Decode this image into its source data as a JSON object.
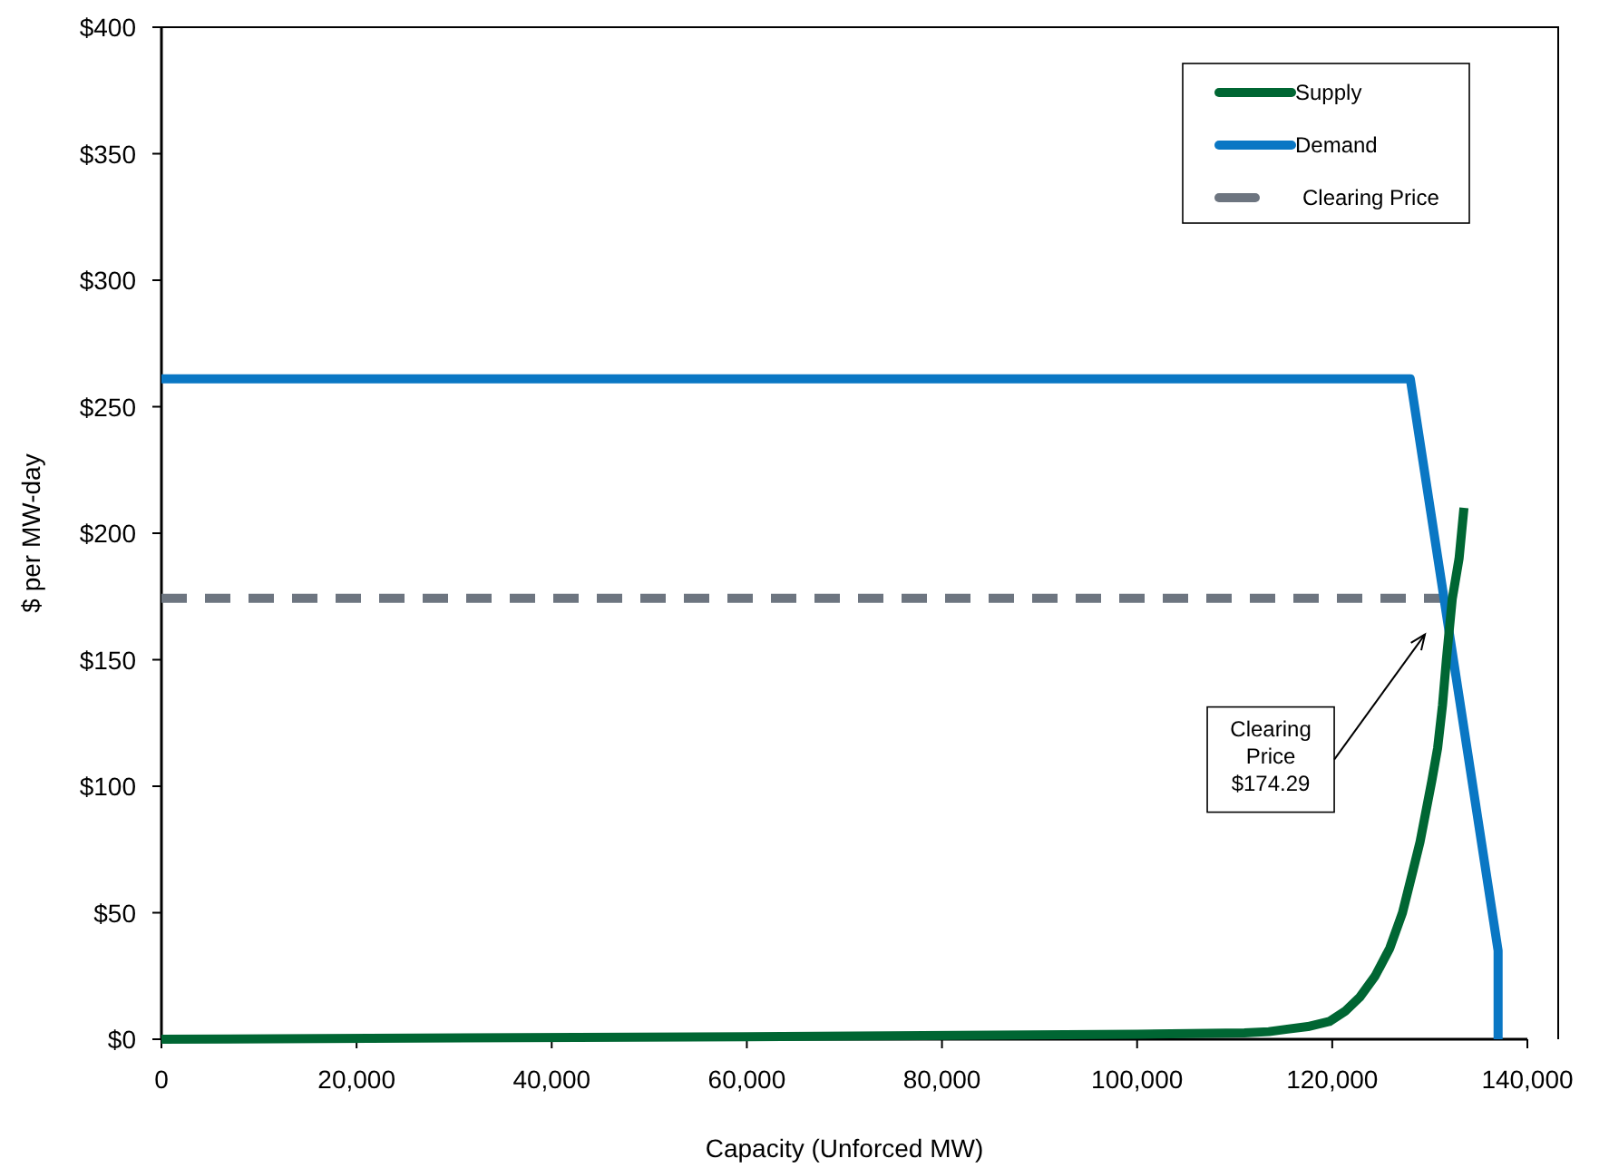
{
  "chart_data": {
    "type": "line",
    "xlabel": "Capacity (Unforced MW)",
    "ylabel": "$ per MW-day",
    "xlim": [
      0,
      140000
    ],
    "ylim": [
      0,
      400
    ],
    "xticks": [
      0,
      {
        "value": 20000,
        "label": "20,000"
      },
      {
        "value": 40000,
        "label": "40,000"
      },
      {
        "value": 60000,
        "label": "60,000"
      },
      {
        "value": 80000,
        "label": "80,000"
      },
      {
        "value": 100000,
        "label": "100,000"
      },
      {
        "value": 120000,
        "label": "120,000"
      },
      {
        "value": 140000,
        "label": "140,000"
      }
    ],
    "yticks": [
      {
        "value": 0,
        "label": "$0"
      },
      {
        "value": 50,
        "label": "$50"
      },
      {
        "value": 100,
        "label": "$100"
      },
      {
        "value": 150,
        "label": "$150"
      },
      {
        "value": 200,
        "label": "$200"
      },
      {
        "value": 250,
        "label": "$250"
      },
      {
        "value": 300,
        "label": "$300"
      },
      {
        "value": 350,
        "label": "$350"
      },
      {
        "value": 400,
        "label": "$400"
      }
    ],
    "grid": false,
    "legend": "top right",
    "series": [
      {
        "name": "Supply",
        "color": "#006633",
        "line_style": "solid",
        "x": [
          0,
          60000,
          100000,
          111000,
          113500,
          115400,
          117500,
          119700,
          121300,
          122800,
          124400,
          125900,
          127200,
          128300,
          129000,
          129600,
          130200,
          130800,
          131300,
          131700,
          132300,
          133000,
          133500
        ],
        "values": [
          0,
          1,
          2,
          2.5,
          3,
          4,
          5,
          7,
          11,
          16.5,
          25,
          36,
          50,
          67,
          78,
          90,
          102,
          115,
          132,
          150,
          174,
          190,
          210
        ]
      },
      {
        "name": "Demand",
        "color": "#0a77c4",
        "line_style": "solid",
        "x": [
          0,
          128000,
          137000,
          137000
        ],
        "values": [
          261,
          261,
          35,
          0
        ]
      },
      {
        "name": "Clearing Price",
        "color": "#6d7580",
        "line_style": "dashed",
        "x": [
          0,
          131500
        ],
        "values": [
          174.29,
          174.29
        ]
      }
    ],
    "annotations": [
      "Clearing Price $174.29"
    ]
  }
}
